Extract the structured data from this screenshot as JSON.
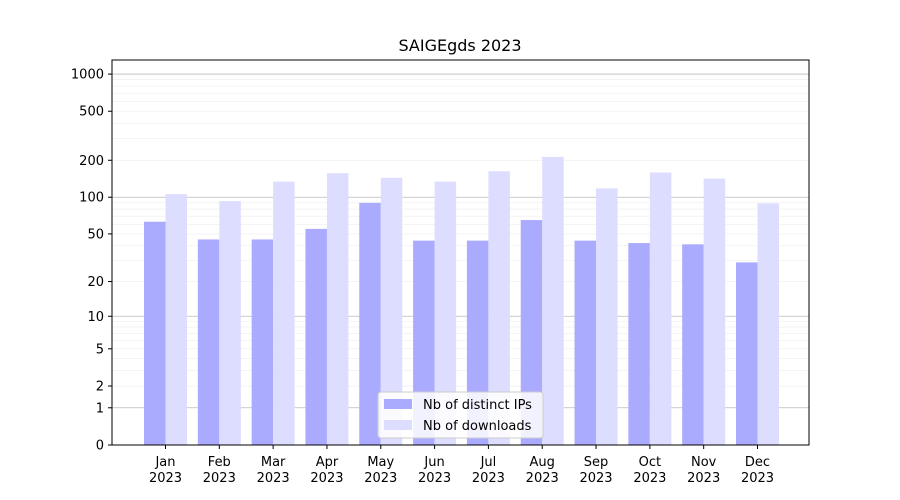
{
  "chart_data": {
    "type": "bar",
    "title": "SAIGEgds 2023",
    "categories": [
      "Jan",
      "Feb",
      "Mar",
      "Apr",
      "May",
      "Jun",
      "Jul",
      "Aug",
      "Sep",
      "Oct",
      "Nov",
      "Dec"
    ],
    "category_sublabel": "2023",
    "series": [
      {
        "name": "Nb of distinct IPs",
        "values": [
          63,
          45,
          45,
          55,
          90,
          44,
          44,
          65,
          44,
          42,
          41,
          29
        ]
      },
      {
        "name": "Nb of downloads",
        "values": [
          106,
          93,
          134,
          157,
          144,
          134,
          163,
          213,
          118,
          159,
          142,
          89
        ]
      }
    ],
    "yscale": "symlog",
    "yticks": [
      0,
      1,
      2,
      5,
      10,
      20,
      50,
      100,
      200,
      500,
      1000
    ],
    "ylim": [
      0,
      1300
    ],
    "grid": true,
    "legend_position": "bottom-center",
    "colors": {
      "series0": "#aaaaff",
      "series1": "#ddddff",
      "grid_major": "#bbbbbb",
      "grid_minor": "#eeeeee"
    }
  }
}
